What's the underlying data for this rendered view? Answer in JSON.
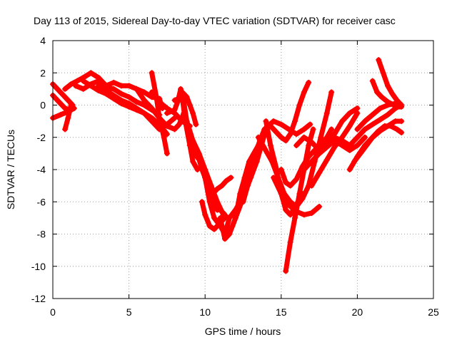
{
  "chart_data": {
    "type": "scatter",
    "title": "Day 113 of 2015, Sidereal Day-to-day VTEC variation (SDTVAR) for receiver casc",
    "xlabel": "GPS time / hours",
    "ylabel": "SDTVAR / TECUs",
    "xlim": [
      0,
      25
    ],
    "ylim": [
      -12,
      4
    ],
    "xticks": [
      0,
      5,
      10,
      15,
      20,
      25
    ],
    "yticks": [
      -12,
      -10,
      -8,
      -6,
      -4,
      -2,
      0,
      2,
      4
    ],
    "grid": true,
    "marker": "plus",
    "color": "#ff0000",
    "series": [
      {
        "x": [
          0.0,
          0.3,
          0.7,
          1.0,
          1.3
        ],
        "y": [
          1.3,
          1.0,
          0.6,
          0.3,
          0.0
        ]
      },
      {
        "x": [
          0.0,
          0.4,
          0.8,
          1.2
        ],
        "y": [
          0.6,
          0.2,
          -0.2,
          -0.3
        ]
      },
      {
        "x": [
          0.0,
          0.5,
          1.0,
          1.4
        ],
        "y": [
          -0.8,
          -0.6,
          -0.4,
          -0.2
        ]
      },
      {
        "x": [
          0.8,
          1.0,
          1.2
        ],
        "y": [
          -1.5,
          -0.8,
          0.0
        ]
      },
      {
        "x": [
          0.8,
          1.2,
          1.6,
          2.0,
          2.5,
          3.0,
          3.5,
          4.0,
          4.5,
          5.0,
          5.5,
          6.0,
          6.5,
          7.0,
          7.2
        ],
        "y": [
          1.0,
          1.3,
          1.5,
          1.7,
          2.0,
          1.7,
          1.2,
          1.4,
          1.2,
          1.2,
          1.0,
          0.8,
          0.5,
          0.4,
          -0.2
        ]
      },
      {
        "x": [
          1.5,
          2.0,
          2.5,
          3.0,
          3.5,
          4.0,
          4.5,
          5.0,
          5.5,
          6.0,
          6.5,
          7.0
        ],
        "y": [
          1.2,
          1.0,
          1.3,
          1.5,
          1.1,
          1.0,
          0.7,
          0.5,
          0.2,
          0.0,
          -0.3,
          -0.6
        ]
      },
      {
        "x": [
          2.0,
          2.5,
          3.0,
          3.5,
          4.0,
          4.5,
          5.0,
          5.5,
          6.0,
          6.5,
          7.0,
          7.5
        ],
        "y": [
          1.5,
          1.2,
          0.9,
          0.7,
          0.4,
          0.1,
          -0.1,
          -0.3,
          -0.5,
          -0.8,
          -1.2,
          -1.8
        ]
      },
      {
        "x": [
          3.0,
          3.5,
          4.0,
          4.5,
          5.0,
          5.5,
          6.0,
          6.5,
          7.0,
          7.5,
          8.0
        ],
        "y": [
          1.2,
          0.9,
          0.6,
          0.3,
          0.1,
          -0.2,
          -0.5,
          -1.0,
          -1.5,
          -1.2,
          -0.8
        ]
      },
      {
        "x": [
          6.5,
          6.8,
          7.0,
          7.3,
          7.5
        ],
        "y": [
          2.0,
          0.5,
          -0.8,
          -2.0,
          -3.0
        ]
      },
      {
        "x": [
          5.5,
          6.0,
          6.5,
          7.0,
          7.5,
          8.0,
          8.3,
          8.6
        ],
        "y": [
          1.0,
          0.3,
          -0.2,
          -0.8,
          -1.3,
          -1.5,
          -1.2,
          -0.5
        ]
      },
      {
        "x": [
          6.5,
          7.0,
          7.5,
          8.0,
          8.5,
          9.0
        ],
        "y": [
          0.8,
          0.2,
          -0.2,
          -0.5,
          -1.0,
          -1.3
        ]
      },
      {
        "x": [
          8.5,
          8.8,
          9.0,
          9.2,
          9.4
        ],
        "y": [
          0.8,
          0.5,
          0.0,
          -0.5,
          -1.2
        ]
      },
      {
        "x": [
          7.5,
          8.0,
          8.2,
          8.4,
          8.6,
          8.8,
          9.0
        ],
        "y": [
          -0.5,
          -0.3,
          0.2,
          1.0,
          0.2,
          -1.0,
          -2.5
        ]
      },
      {
        "x": [
          8.0,
          8.5,
          8.7,
          9.0,
          9.2,
          9.5
        ],
        "y": [
          0.3,
          0.5,
          -1.0,
          -2.5,
          -3.5,
          -4.0
        ]
      },
      {
        "x": [
          8.8,
          9.2,
          9.6,
          10.0,
          10.4,
          10.8,
          11.2,
          11.5
        ],
        "y": [
          -1.0,
          -2.2,
          -3.0,
          -4.0,
          -5.0,
          -6.0,
          -6.8,
          -7.0
        ]
      },
      {
        "x": [
          9.0,
          9.3,
          9.7,
          10.0,
          10.3,
          10.6,
          11.0,
          11.3,
          11.6,
          12.0,
          12.3,
          12.6,
          12.9
        ],
        "y": [
          -2.0,
          -3.0,
          -3.5,
          -4.5,
          -6.0,
          -7.0,
          -7.5,
          -8.0,
          -7.0,
          -6.5,
          -6.0,
          -4.5,
          -3.5
        ]
      },
      {
        "x": [
          9.5,
          9.8,
          10.0,
          10.3,
          10.5,
          10.8,
          11.0
        ],
        "y": [
          -3.0,
          -4.0,
          -4.5,
          -5.5,
          -6.2,
          -6.5,
          -6.5
        ]
      },
      {
        "x": [
          10.0,
          10.3,
          10.6,
          11.0,
          11.3
        ],
        "y": [
          -4.0,
          -5.0,
          -6.0,
          -6.5,
          -6.8
        ]
      },
      {
        "x": [
          9.8,
          10.0,
          10.3,
          10.6,
          10.9,
          11.3
        ],
        "y": [
          -6.0,
          -6.8,
          -7.5,
          -7.7,
          -7.4,
          -7.0
        ]
      },
      {
        "x": [
          10.5,
          10.8,
          11.1,
          11.4,
          11.7
        ],
        "y": [
          -5.5,
          -5.2,
          -5.0,
          -4.7,
          -4.5
        ]
      },
      {
        "x": [
          11.0,
          11.3,
          11.6,
          12.0,
          12.3,
          12.6,
          12.9,
          13.2,
          13.5,
          13.8,
          14.1
        ],
        "y": [
          -7.0,
          -8.3,
          -8.0,
          -7.0,
          -5.5,
          -4.5,
          -3.5,
          -3.0,
          -2.5,
          -2.0,
          -1.7
        ]
      },
      {
        "x": [
          11.8,
          12.2,
          12.6,
          13.0,
          13.4,
          13.7,
          14.0
        ],
        "y": [
          -7.5,
          -6.5,
          -5.5,
          -4.5,
          -3.5,
          -2.5,
          -1.5
        ]
      },
      {
        "x": [
          12.5,
          12.8,
          13.2,
          13.6,
          14.0,
          14.5,
          15.0,
          15.5,
          16.0,
          16.5,
          16.9
        ],
        "y": [
          -6.0,
          -5.0,
          -3.5,
          -2.2,
          -1.4,
          -1.0,
          -1.2,
          -1.5,
          -1.8,
          -1.5,
          -1.2
        ]
      },
      {
        "x": [
          13.0,
          13.3,
          13.6,
          13.9,
          14.3,
          14.6,
          15.0,
          15.3,
          15.6,
          15.9,
          16.2,
          16.5,
          16.8
        ],
        "y": [
          -4.0,
          -3.0,
          -2.2,
          -1.5,
          -1.3,
          -1.6,
          -2.0,
          -2.2,
          -1.8,
          -1.0,
          0.0,
          0.8,
          1.4
        ]
      },
      {
        "x": [
          13.5,
          13.8,
          14.1,
          14.4,
          14.8,
          15.2,
          15.6,
          16.0,
          16.4,
          16.8,
          17.2,
          17.6,
          18.0,
          18.3
        ],
        "y": [
          -2.0,
          -2.5,
          -3.0,
          -3.5,
          -4.5,
          -5.5,
          -6.0,
          -6.3,
          -5.8,
          -5.0,
          -3.5,
          -2.0,
          -0.5,
          0.8
        ]
      },
      {
        "x": [
          14.0,
          14.3,
          14.7,
          15.0,
          15.3,
          15.6,
          15.8,
          16.1,
          16.4
        ],
        "y": [
          -1.0,
          -2.5,
          -4.0,
          -5.5,
          -6.5,
          -6.8,
          -6.5,
          -6.0,
          -5.5
        ]
      },
      {
        "x": [
          14.5,
          15.0,
          15.5,
          16.0,
          16.5,
          17.0,
          17.5
        ],
        "y": [
          -4.5,
          -5.5,
          -6.2,
          -6.6,
          -6.8,
          -6.7,
          -6.3
        ]
      },
      {
        "x": [
          15.0,
          15.3,
          15.6,
          16.0,
          16.4,
          16.8,
          17.2,
          17.6,
          18.0,
          18.3
        ],
        "y": [
          -4.0,
          -4.8,
          -5.0,
          -4.6,
          -3.8,
          -3.2,
          -2.8,
          -2.5,
          -2.0,
          -1.5
        ]
      },
      {
        "x": [
          15.3,
          15.6,
          15.9,
          16.2,
          16.5,
          16.8,
          17.1
        ],
        "y": [
          -10.3,
          -8.5,
          -7.0,
          -5.5,
          -4.0,
          -2.5,
          -1.5
        ]
      },
      {
        "x": [
          16.0,
          16.5,
          17.0,
          17.5,
          18.0,
          18.5,
          19.0,
          19.5,
          20.0
        ],
        "y": [
          -2.5,
          -2.0,
          -2.3,
          -2.8,
          -2.4,
          -1.8,
          -1.0,
          -0.5,
          -0.2
        ]
      },
      {
        "x": [
          16.5,
          17.0,
          17.5,
          18.0,
          18.5,
          19.0,
          19.5,
          20.0,
          20.5
        ],
        "y": [
          -4.0,
          -3.5,
          -3.0,
          -2.6,
          -2.2,
          -2.5,
          -2.8,
          -2.5,
          -2.0
        ]
      },
      {
        "x": [
          17.0,
          17.5,
          18.0,
          18.5,
          19.0,
          19.5,
          20.0
        ],
        "y": [
          -5.0,
          -4.2,
          -3.4,
          -2.6,
          -2.0,
          -1.3,
          -0.5
        ]
      },
      {
        "x": [
          18.5,
          19.0,
          19.5,
          20.0,
          20.5,
          21.0,
          21.5,
          22.0,
          22.5,
          22.9
        ],
        "y": [
          -2.0,
          -2.2,
          -2.5,
          -2.0,
          -1.5,
          -1.2,
          -0.9,
          -0.6,
          -0.2,
          0.0
        ]
      },
      {
        "x": [
          19.5,
          20.0,
          20.5,
          21.0,
          21.5,
          22.0,
          22.5,
          22.9
        ],
        "y": [
          -4.0,
          -3.2,
          -2.5,
          -2.0,
          -1.6,
          -1.3,
          -1.0,
          -1.0
        ]
      },
      {
        "x": [
          19.8,
          20.2,
          20.6,
          21.0,
          21.4,
          21.8,
          22.2,
          22.6,
          22.9
        ],
        "y": [
          -3.5,
          -3.0,
          -2.5,
          -2.0,
          -1.6,
          -1.3,
          -1.3,
          -1.5,
          -1.7
        ]
      },
      {
        "x": [
          20.0,
          20.5,
          21.0,
          21.5,
          22.0,
          22.5,
          22.9
        ],
        "y": [
          -1.5,
          -1.0,
          -0.6,
          -0.2,
          0.0,
          0.1,
          -0.1
        ]
      },
      {
        "x": [
          21.0,
          21.3,
          21.6,
          22.0,
          22.4,
          22.8
        ],
        "y": [
          1.5,
          0.8,
          0.5,
          0.2,
          0.0,
          -0.1
        ]
      },
      {
        "x": [
          21.4,
          21.7,
          22.0,
          22.3,
          22.6,
          22.9
        ],
        "y": [
          2.8,
          2.0,
          1.2,
          0.7,
          0.3,
          0.0
        ]
      }
    ]
  }
}
